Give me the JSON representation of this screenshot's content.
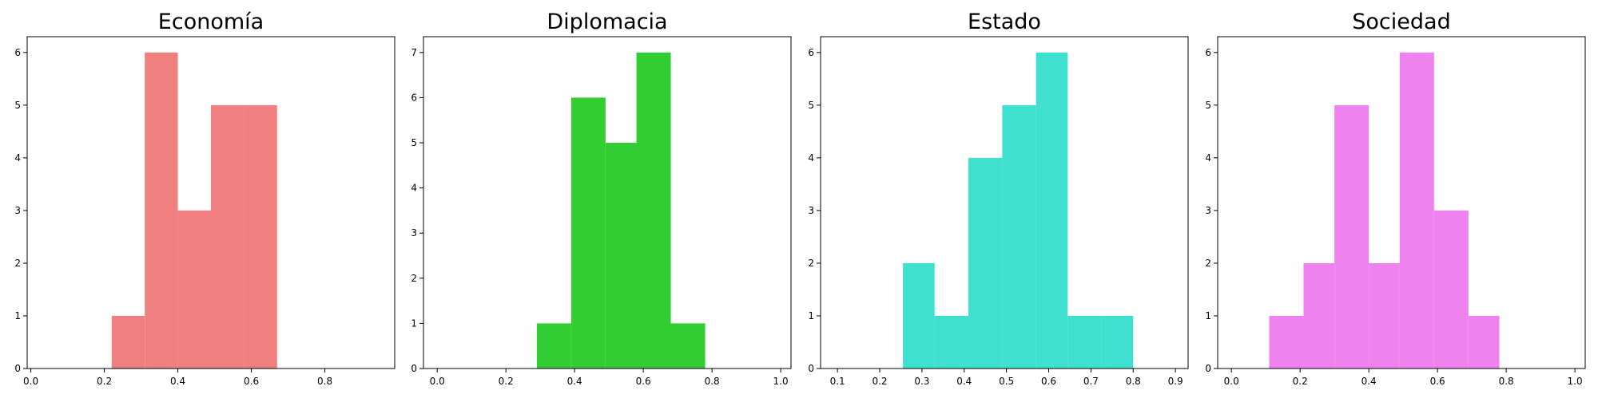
{
  "chart_data": [
    {
      "type": "bar",
      "title": "Economía",
      "color": "#f08080",
      "xlim": [
        -0.01,
        0.99
      ],
      "ylim": [
        0,
        6.3
      ],
      "xticks": [
        0.0,
        0.2,
        0.4,
        0.6,
        0.8
      ],
      "xtick_labels": [
        "0.0",
        "0.2",
        "0.4",
        "0.6",
        "0.8"
      ],
      "yticks": [
        0,
        1,
        2,
        3,
        4,
        5,
        6
      ],
      "ytick_labels": [
        "0",
        "1",
        "2",
        "3",
        "4",
        "5",
        "6"
      ],
      "bins": [
        {
          "x0": 0.22,
          "x1": 0.31,
          "count": 1
        },
        {
          "x0": 0.31,
          "x1": 0.4,
          "count": 6
        },
        {
          "x0": 0.4,
          "x1": 0.49,
          "count": 3
        },
        {
          "x0": 0.49,
          "x1": 0.58,
          "count": 5
        },
        {
          "x0": 0.58,
          "x1": 0.67,
          "count": 5
        }
      ],
      "grid": false
    },
    {
      "type": "bar",
      "title": "Diplomacia",
      "color": "#32cd32",
      "xlim": [
        -0.04,
        1.03
      ],
      "ylim": [
        0,
        7.35
      ],
      "xticks": [
        0.0,
        0.2,
        0.4,
        0.6,
        0.8,
        1.0
      ],
      "xtick_labels": [
        "0.0",
        "0.2",
        "0.4",
        "0.6",
        "0.8",
        "1.0"
      ],
      "yticks": [
        0,
        1,
        2,
        3,
        4,
        5,
        6,
        7
      ],
      "ytick_labels": [
        "0",
        "1",
        "2",
        "3",
        "4",
        "5",
        "6",
        "7"
      ],
      "bins": [
        {
          "x0": 0.29,
          "x1": 0.39,
          "count": 1
        },
        {
          "x0": 0.39,
          "x1": 0.49,
          "count": 6
        },
        {
          "x0": 0.49,
          "x1": 0.58,
          "count": 5
        },
        {
          "x0": 0.58,
          "x1": 0.68,
          "count": 7
        },
        {
          "x0": 0.68,
          "x1": 0.78,
          "count": 1
        }
      ],
      "grid": false
    },
    {
      "type": "bar",
      "title": "Estado",
      "color": "#40e0d0",
      "xlim": [
        0.06,
        0.93
      ],
      "ylim": [
        0,
        6.3
      ],
      "xticks": [
        0.1,
        0.2,
        0.3,
        0.4,
        0.5,
        0.6,
        0.7,
        0.8,
        0.9
      ],
      "xtick_labels": [
        "0.1",
        "0.2",
        "0.3",
        "0.4",
        "0.5",
        "0.6",
        "0.7",
        "0.8",
        "0.9"
      ],
      "yticks": [
        0,
        1,
        2,
        3,
        4,
        5,
        6
      ],
      "ytick_labels": [
        "0",
        "1",
        "2",
        "3",
        "4",
        "5",
        "6"
      ],
      "bins": [
        {
          "x0": 0.255,
          "x1": 0.33,
          "count": 2
        },
        {
          "x0": 0.33,
          "x1": 0.41,
          "count": 1
        },
        {
          "x0": 0.41,
          "x1": 0.49,
          "count": 4
        },
        {
          "x0": 0.49,
          "x1": 0.57,
          "count": 5
        },
        {
          "x0": 0.57,
          "x1": 0.645,
          "count": 6
        },
        {
          "x0": 0.645,
          "x1": 0.725,
          "count": 1
        },
        {
          "x0": 0.725,
          "x1": 0.8,
          "count": 1
        }
      ],
      "grid": false
    },
    {
      "type": "bar",
      "title": "Sociedad",
      "color": "#ee82ee",
      "xlim": [
        -0.04,
        1.03
      ],
      "ylim": [
        0,
        6.3
      ],
      "xticks": [
        0.0,
        0.2,
        0.4,
        0.6,
        0.8,
        1.0
      ],
      "xtick_labels": [
        "0.0",
        "0.2",
        "0.4",
        "0.6",
        "0.8",
        "1.0"
      ],
      "yticks": [
        0,
        1,
        2,
        3,
        4,
        5,
        6
      ],
      "ytick_labels": [
        "0",
        "1",
        "2",
        "3",
        "4",
        "5",
        "6"
      ],
      "bins": [
        {
          "x0": 0.11,
          "x1": 0.21,
          "count": 1
        },
        {
          "x0": 0.21,
          "x1": 0.3,
          "count": 2
        },
        {
          "x0": 0.3,
          "x1": 0.4,
          "count": 5
        },
        {
          "x0": 0.4,
          "x1": 0.49,
          "count": 2
        },
        {
          "x0": 0.49,
          "x1": 0.59,
          "count": 6
        },
        {
          "x0": 0.59,
          "x1": 0.69,
          "count": 3
        },
        {
          "x0": 0.69,
          "x1": 0.78,
          "count": 1
        }
      ],
      "grid": false
    }
  ]
}
